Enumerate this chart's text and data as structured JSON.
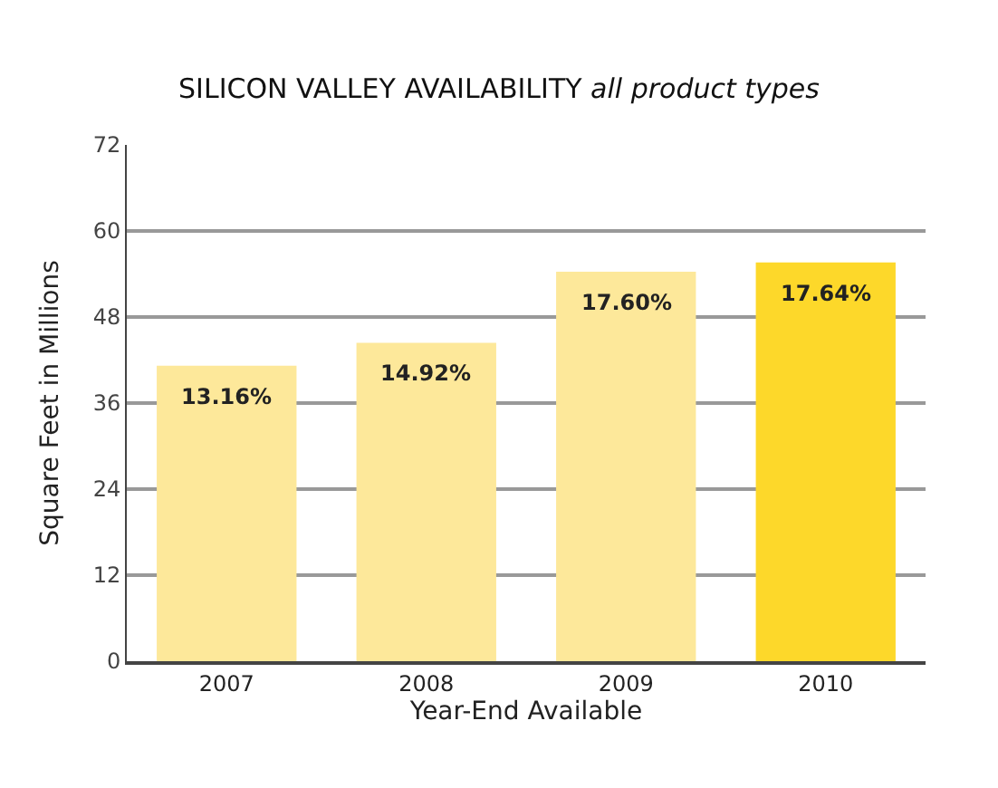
{
  "chart_data": {
    "type": "bar",
    "title": "SILICON VALLEY AVAILABILITY",
    "subtitle": "all product types",
    "xlabel": "Year-End Available",
    "ylabel": "Square Feet in Millions",
    "categories": [
      "2007",
      "2008",
      "2009",
      "2010"
    ],
    "values": [
      41.2,
      44.4,
      54.3,
      55.6
    ],
    "annotations": [
      {
        "text": "13.16%",
        "x": "2007",
        "y": 41.2
      },
      {
        "text": "14.92%",
        "x": "2008",
        "y": 44.4
      },
      {
        "text": "17.60%",
        "x": "2009",
        "y": 54.3
      },
      {
        "text": "17.64%",
        "x": "2010",
        "y": 55.6
      }
    ],
    "colors": [
      "#fde89a",
      "#fde89a",
      "#fde89a",
      "#fdd82a"
    ],
    "ylim": [
      0,
      72
    ],
    "yticks": [
      0,
      12,
      24,
      36,
      48,
      60,
      72
    ],
    "grid": "y"
  }
}
